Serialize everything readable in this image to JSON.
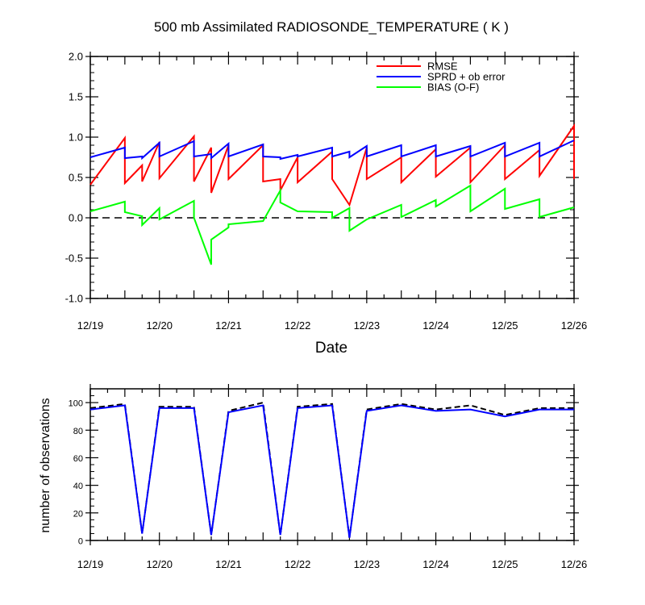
{
  "chart_data": [
    {
      "type": "line",
      "title": "500 mb Assimilated RADIOSONDE_TEMPERATURE ( K )",
      "xlabel": "Date",
      "ylabel": "",
      "xlim": [
        0,
        7
      ],
      "ylim": [
        -1.0,
        2.0
      ],
      "x_tick_labels": [
        {
          "x": 0,
          "label": "12/19"
        },
        {
          "x": 1,
          "label": "12/20"
        },
        {
          "x": 2,
          "label": "12/21"
        },
        {
          "x": 3,
          "label": "12/22"
        },
        {
          "x": 4,
          "label": "12/23"
        },
        {
          "x": 5,
          "label": "12/24"
        },
        {
          "x": 6,
          "label": "12/25"
        },
        {
          "x": 7,
          "label": "12/26"
        }
      ],
      "y_ticks": [
        {
          "v": -1.0,
          "label": "-1.0"
        },
        {
          "v": -0.5,
          "label": "-0.5"
        },
        {
          "v": 0.0,
          "label": "0.0"
        },
        {
          "v": 0.5,
          "label": "0.5"
        },
        {
          "v": 1.0,
          "label": "1.0"
        },
        {
          "v": 1.5,
          "label": "1.5"
        },
        {
          "v": 2.0,
          "label": "2.0"
        }
      ],
      "zero_line": true,
      "legend_position": "top-right",
      "series": [
        {
          "name": "RMSE",
          "color": "#ff0000",
          "points": [
            [
              0,
              0.41
            ],
            [
              0.5,
              0.99
            ],
            [
              0.5,
              0.43
            ],
            [
              0.75,
              0.65
            ],
            [
              0.75,
              0.45
            ],
            [
              1.0,
              0.94
            ],
            [
              1.0,
              0.49
            ],
            [
              1.5,
              1.01
            ],
            [
              1.5,
              0.45
            ],
            [
              1.75,
              0.87
            ],
            [
              1.75,
              0.31
            ],
            [
              2.0,
              0.9
            ],
            [
              2.0,
              0.48
            ],
            [
              2.5,
              0.9
            ],
            [
              2.5,
              0.45
            ],
            [
              2.75,
              0.48
            ],
            [
              2.75,
              0.34
            ],
            [
              3.0,
              0.75
            ],
            [
              3.0,
              0.44
            ],
            [
              3.5,
              0.82
            ],
            [
              3.5,
              0.48
            ],
            [
              3.75,
              0.16
            ],
            [
              4.0,
              0.87
            ],
            [
              4.0,
              0.48
            ],
            [
              4.5,
              0.75
            ],
            [
              4.5,
              0.44
            ],
            [
              5.0,
              0.85
            ],
            [
              5.0,
              0.51
            ],
            [
              5.5,
              0.87
            ],
            [
              5.5,
              0.44
            ],
            [
              6.0,
              0.9
            ],
            [
              6.0,
              0.48
            ],
            [
              6.5,
              0.84
            ],
            [
              6.5,
              0.52
            ],
            [
              7.0,
              1.14
            ],
            [
              7.0,
              0.48
            ]
          ]
        },
        {
          "name": "SPRD + ob error",
          "color": "#0000ff",
          "points": [
            [
              0,
              0.75
            ],
            [
              0.5,
              0.87
            ],
            [
              0.5,
              0.74
            ],
            [
              0.75,
              0.76
            ],
            [
              0.75,
              0.74
            ],
            [
              1.0,
              0.93
            ],
            [
              1.0,
              0.76
            ],
            [
              1.5,
              0.95
            ],
            [
              1.5,
              0.76
            ],
            [
              1.75,
              0.79
            ],
            [
              1.75,
              0.74
            ],
            [
              2.0,
              0.92
            ],
            [
              2.0,
              0.76
            ],
            [
              2.5,
              0.91
            ],
            [
              2.5,
              0.76
            ],
            [
              2.75,
              0.75
            ],
            [
              2.75,
              0.73
            ],
            [
              3.0,
              0.78
            ],
            [
              3.0,
              0.76
            ],
            [
              3.5,
              0.87
            ],
            [
              3.5,
              0.76
            ],
            [
              3.75,
              0.82
            ],
            [
              3.75,
              0.75
            ],
            [
              4.0,
              0.89
            ],
            [
              4.0,
              0.76
            ],
            [
              4.5,
              0.9
            ],
            [
              4.5,
              0.76
            ],
            [
              5.0,
              0.9
            ],
            [
              5.0,
              0.76
            ],
            [
              5.5,
              0.89
            ],
            [
              5.5,
              0.76
            ],
            [
              6.0,
              0.93
            ],
            [
              6.0,
              0.76
            ],
            [
              6.5,
              0.93
            ],
            [
              6.5,
              0.76
            ],
            [
              7.0,
              0.96
            ]
          ]
        },
        {
          "name": "BIAS (O-F)",
          "color": "#00ff00",
          "points": [
            [
              0,
              0.08
            ],
            [
              0.5,
              0.2
            ],
            [
              0.5,
              0.07
            ],
            [
              0.75,
              0.02
            ],
            [
              0.75,
              -0.09
            ],
            [
              1.0,
              0.12
            ],
            [
              1.0,
              -0.02
            ],
            [
              1.5,
              0.21
            ],
            [
              1.5,
              0.0
            ],
            [
              1.75,
              -0.58
            ],
            [
              1.75,
              -0.27
            ],
            [
              2.0,
              -0.12
            ],
            [
              2.0,
              -0.08
            ],
            [
              2.5,
              -0.04
            ],
            [
              2.75,
              0.34
            ],
            [
              2.75,
              0.19
            ],
            [
              3.0,
              0.08
            ],
            [
              3.5,
              0.07
            ],
            [
              3.5,
              0.0
            ],
            [
              3.75,
              0.12
            ],
            [
              3.75,
              -0.16
            ],
            [
              4.0,
              -0.02
            ],
            [
              4.5,
              0.16
            ],
            [
              4.5,
              0.01
            ],
            [
              5.0,
              0.22
            ],
            [
              5.0,
              0.14
            ],
            [
              5.5,
              0.4
            ],
            [
              5.5,
              0.08
            ],
            [
              6.0,
              0.36
            ],
            [
              6.0,
              0.11
            ],
            [
              6.5,
              0.23
            ],
            [
              6.5,
              0.01
            ],
            [
              7.0,
              0.13
            ]
          ]
        }
      ]
    },
    {
      "type": "line",
      "title": "",
      "xlabel": "",
      "ylabel": "number of observations",
      "xlim": [
        0,
        7
      ],
      "ylim": [
        0,
        110
      ],
      "x_tick_labels": [
        {
          "x": 0,
          "label": "12/19"
        },
        {
          "x": 1,
          "label": "12/20"
        },
        {
          "x": 2,
          "label": "12/21"
        },
        {
          "x": 3,
          "label": "12/22"
        },
        {
          "x": 4,
          "label": "12/23"
        },
        {
          "x": 5,
          "label": "12/24"
        },
        {
          "x": 6,
          "label": "12/25"
        },
        {
          "x": 7,
          "label": "12/26"
        }
      ],
      "y_ticks": [
        {
          "v": 0,
          "label": "0"
        },
        {
          "v": 20,
          "label": "20"
        },
        {
          "v": 40,
          "label": "40"
        },
        {
          "v": 60,
          "label": "60"
        },
        {
          "v": 80,
          "label": "80"
        },
        {
          "v": 100,
          "label": "100"
        }
      ],
      "series": [
        {
          "color": "#000000",
          "dashed": true,
          "points": [
            [
              0,
              96
            ],
            [
              0.5,
              99
            ],
            [
              0.75,
              5
            ],
            [
              1.0,
              97
            ],
            [
              1.5,
              97
            ],
            [
              1.75,
              4
            ],
            [
              2.0,
              94
            ],
            [
              2.5,
              100
            ],
            [
              2.75,
              4
            ],
            [
              3.0,
              97
            ],
            [
              3.5,
              99
            ],
            [
              3.75,
              2
            ],
            [
              4.0,
              95
            ],
            [
              4.5,
              99
            ],
            [
              5.0,
              95
            ],
            [
              5.5,
              98
            ],
            [
              6.0,
              91
            ],
            [
              6.5,
              96
            ],
            [
              7.0,
              96
            ]
          ]
        },
        {
          "color": "#0000ff",
          "dashed": false,
          "points": [
            [
              0,
              95
            ],
            [
              0.5,
              98
            ],
            [
              0.75,
              5
            ],
            [
              1.0,
              96
            ],
            [
              1.5,
              96
            ],
            [
              1.75,
              4
            ],
            [
              2.0,
              93
            ],
            [
              2.5,
              98
            ],
            [
              2.75,
              4
            ],
            [
              3.0,
              96
            ],
            [
              3.5,
              98
            ],
            [
              3.75,
              2
            ],
            [
              4.0,
              94
            ],
            [
              4.5,
              98
            ],
            [
              5.0,
              94
            ],
            [
              5.5,
              95
            ],
            [
              6.0,
              90
            ],
            [
              6.5,
              95
            ],
            [
              7.0,
              95
            ]
          ]
        }
      ]
    }
  ]
}
